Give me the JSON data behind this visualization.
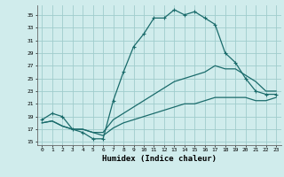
{
  "xlabel": "Humidex (Indice chaleur)",
  "xlim": [
    -0.5,
    23.5
  ],
  "ylim": [
    14.5,
    36.5
  ],
  "xticks": [
    0,
    1,
    2,
    3,
    4,
    5,
    6,
    7,
    8,
    9,
    10,
    11,
    12,
    13,
    14,
    15,
    16,
    17,
    18,
    19,
    20,
    21,
    22,
    23
  ],
  "yticks": [
    15,
    17,
    19,
    21,
    23,
    25,
    27,
    29,
    31,
    33,
    35
  ],
  "bg_color": "#d0ecec",
  "grid_color": "#a0cccc",
  "line_color": "#1a6b6b",
  "line1_x": [
    0,
    1,
    2,
    3,
    4,
    5,
    6,
    7,
    8,
    9,
    10,
    11,
    12,
    13,
    14,
    15,
    16,
    17,
    18,
    19,
    20,
    21,
    22,
    23
  ],
  "line1_y": [
    18.5,
    19.5,
    19.0,
    17.0,
    16.5,
    15.5,
    15.5,
    21.5,
    26.0,
    30.0,
    32.0,
    34.5,
    34.5,
    35.8,
    35.0,
    35.5,
    34.5,
    33.5,
    29.0,
    27.5,
    25.0,
    23.0,
    22.5,
    22.5
  ],
  "line2_x": [
    0,
    1,
    2,
    3,
    4,
    5,
    6,
    7,
    8,
    9,
    10,
    11,
    12,
    13,
    14,
    15,
    16,
    17,
    18,
    19,
    20,
    21,
    22,
    23
  ],
  "line2_y": [
    18.0,
    18.3,
    17.5,
    17.0,
    17.0,
    16.5,
    16.0,
    17.2,
    18.0,
    18.5,
    19.0,
    19.5,
    20.0,
    20.5,
    21.0,
    21.0,
    21.5,
    22.0,
    22.0,
    22.0,
    22.0,
    21.5,
    21.5,
    22.0
  ],
  "line3_x": [
    0,
    1,
    2,
    3,
    4,
    5,
    6,
    7,
    8,
    9,
    10,
    11,
    12,
    13,
    14,
    15,
    16,
    17,
    18,
    19,
    20,
    21,
    22,
    23
  ],
  "line3_y": [
    18.0,
    18.3,
    17.5,
    17.0,
    17.0,
    16.5,
    16.5,
    18.5,
    19.5,
    20.5,
    21.5,
    22.5,
    23.5,
    24.5,
    25.0,
    25.5,
    26.0,
    27.0,
    26.5,
    26.5,
    25.5,
    24.5,
    23.0,
    23.0
  ],
  "linewidth": 0.9,
  "markersize": 3.5
}
